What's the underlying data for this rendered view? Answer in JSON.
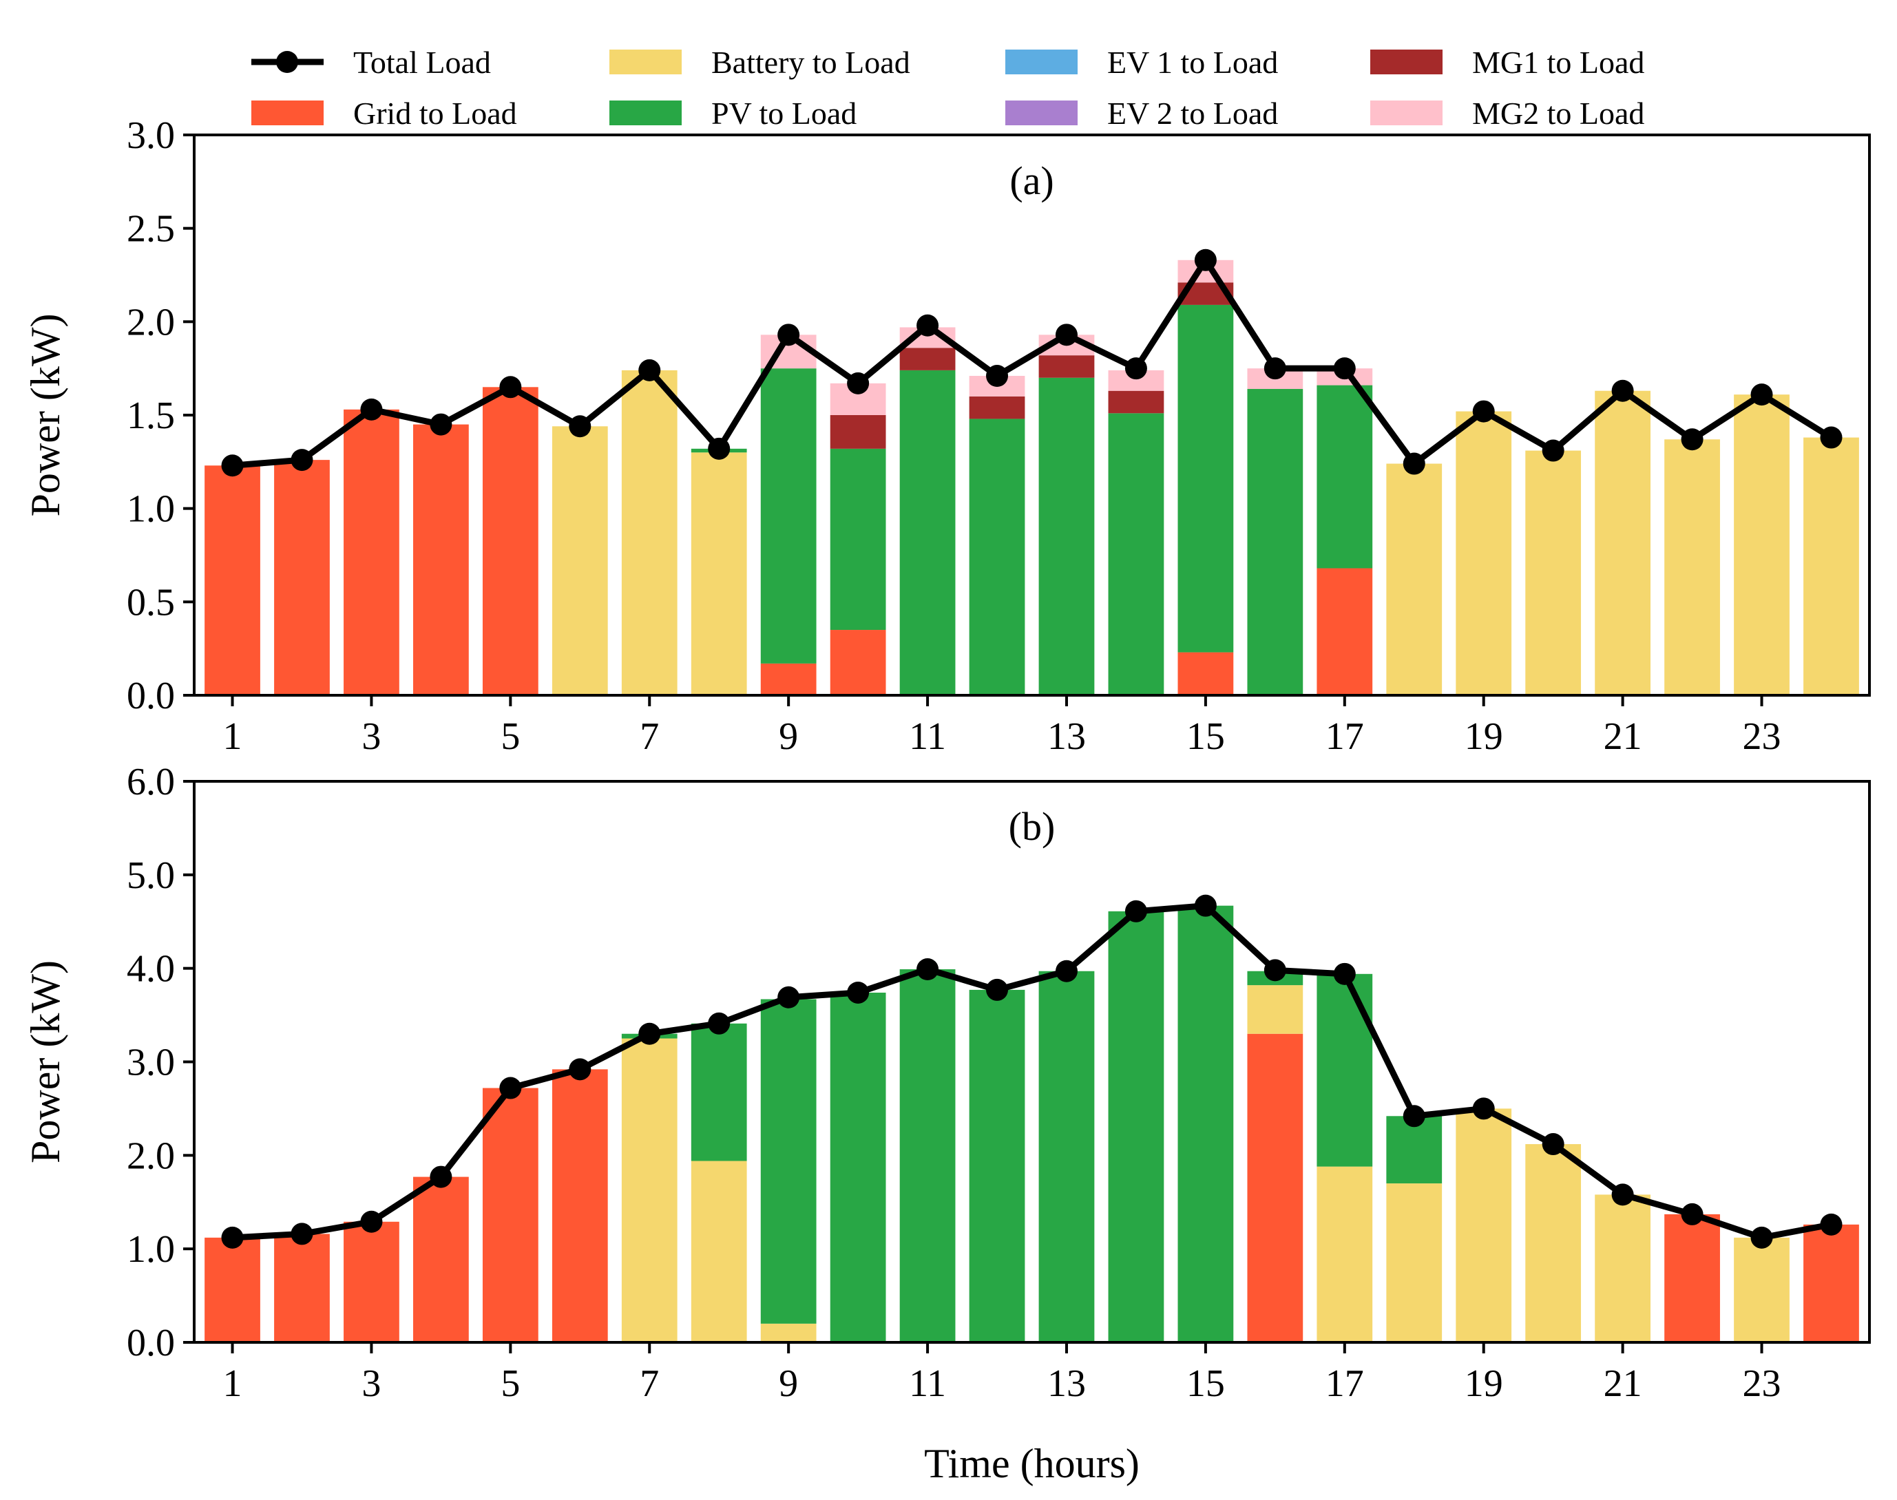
{
  "chart_data": [
    {
      "type": "bar",
      "subtype": "stacked",
      "panel_label": "(a)",
      "ylabel": "Power (kW)",
      "xlabel": "",
      "ylim": [
        0,
        3.0
      ],
      "yticks": [
        "0.0",
        "0.5",
        "1.0",
        "1.5",
        "2.0",
        "2.5",
        "3.0"
      ],
      "ytick_values": [
        0,
        0.5,
        1.0,
        1.5,
        2.0,
        2.5,
        3.0
      ],
      "x": [
        1,
        2,
        3,
        4,
        5,
        6,
        7,
        8,
        9,
        10,
        11,
        12,
        13,
        14,
        15,
        16,
        17,
        18,
        19,
        20,
        21,
        22,
        23,
        24
      ],
      "xticks": [
        "1",
        "3",
        "5",
        "7",
        "9",
        "11",
        "13",
        "15",
        "17",
        "19",
        "21",
        "23"
      ],
      "xtick_values": [
        1,
        3,
        5,
        7,
        9,
        11,
        13,
        15,
        17,
        19,
        21,
        23
      ],
      "series": [
        {
          "name": "Grid to Load",
          "color": "#ff5733",
          "values": [
            1.23,
            1.26,
            1.53,
            1.45,
            1.65,
            0,
            0,
            0,
            0.17,
            0.35,
            0,
            0,
            0,
            0,
            0.23,
            0,
            0.68,
            0,
            0,
            0,
            0,
            0,
            0,
            0
          ]
        },
        {
          "name": "Battery to Load",
          "color": "#f5d76e",
          "values": [
            0,
            0,
            0,
            0,
            0,
            1.44,
            1.74,
            1.3,
            0,
            0,
            0,
            0,
            0,
            0,
            0,
            0,
            0,
            1.24,
            1.52,
            1.31,
            1.63,
            1.37,
            1.61,
            1.38
          ]
        },
        {
          "name": "PV to Load",
          "color": "#28a745",
          "values": [
            0,
            0,
            0,
            0,
            0,
            0,
            0,
            0.02,
            1.58,
            0.97,
            1.74,
            1.48,
            1.7,
            1.51,
            1.86,
            1.64,
            0.98,
            0,
            0,
            0,
            0,
            0,
            0,
            0
          ]
        },
        {
          "name": "EV 1 to Load",
          "color": "#5dade2",
          "values": [
            0,
            0,
            0,
            0,
            0,
            0,
            0,
            0,
            0,
            0,
            0,
            0,
            0,
            0,
            0,
            0,
            0,
            0,
            0,
            0,
            0,
            0,
            0,
            0
          ]
        },
        {
          "name": "EV 2 to Load",
          "color": "#a97fcf",
          "values": [
            0,
            0,
            0,
            0,
            0,
            0,
            0,
            0,
            0,
            0,
            0,
            0,
            0,
            0,
            0,
            0,
            0,
            0,
            0,
            0,
            0,
            0,
            0,
            0
          ]
        },
        {
          "name": "MG1 to Load",
          "color": "#a52a2a",
          "values": [
            0,
            0,
            0,
            0,
            0,
            0,
            0,
            0,
            0,
            0.18,
            0.12,
            0.12,
            0.12,
            0.12,
            0.12,
            0,
            0,
            0,
            0,
            0,
            0,
            0,
            0,
            0
          ]
        },
        {
          "name": "MG2 to Load",
          "color": "#ffc0cb",
          "values": [
            0,
            0,
            0,
            0,
            0,
            0,
            0,
            0,
            0.18,
            0.17,
            0.11,
            0.11,
            0.11,
            0.11,
            0.12,
            0.11,
            0.09,
            0,
            0,
            0,
            0,
            0,
            0,
            0
          ]
        }
      ],
      "line": {
        "name": "Total Load",
        "color": "#000000",
        "values": [
          1.23,
          1.26,
          1.53,
          1.45,
          1.65,
          1.44,
          1.74,
          1.32,
          1.93,
          1.67,
          1.98,
          1.71,
          1.93,
          1.75,
          2.33,
          1.75,
          1.75,
          1.24,
          1.52,
          1.31,
          1.63,
          1.37,
          1.61,
          1.38
        ]
      }
    },
    {
      "type": "bar",
      "subtype": "stacked",
      "panel_label": "(b)",
      "ylabel": "Power (kW)",
      "xlabel": "Time (hours)",
      "ylim": [
        0,
        6.0
      ],
      "yticks": [
        "0.0",
        "1.0",
        "2.0",
        "3.0",
        "4.0",
        "5.0",
        "6.0"
      ],
      "ytick_values": [
        0,
        1.0,
        2.0,
        3.0,
        4.0,
        5.0,
        6.0
      ],
      "x": [
        1,
        2,
        3,
        4,
        5,
        6,
        7,
        8,
        9,
        10,
        11,
        12,
        13,
        14,
        15,
        16,
        17,
        18,
        19,
        20,
        21,
        22,
        23,
        24
      ],
      "xticks": [
        "1",
        "3",
        "5",
        "7",
        "9",
        "11",
        "13",
        "15",
        "17",
        "19",
        "21",
        "23"
      ],
      "xtick_values": [
        1,
        3,
        5,
        7,
        9,
        11,
        13,
        15,
        17,
        19,
        21,
        23
      ],
      "series": [
        {
          "name": "Grid to Load",
          "color": "#ff5733",
          "values": [
            1.12,
            1.16,
            1.29,
            1.77,
            2.72,
            2.92,
            0,
            0,
            0,
            0,
            0,
            0,
            0,
            0,
            0,
            3.3,
            0,
            0,
            0,
            0,
            0,
            1.37,
            0,
            1.26
          ]
        },
        {
          "name": "Battery to Load",
          "color": "#f5d76e",
          "values": [
            0,
            0,
            0,
            0,
            0,
            0,
            3.25,
            1.94,
            0.2,
            0,
            0,
            0,
            0,
            0,
            0,
            0.52,
            1.88,
            1.7,
            2.5,
            2.12,
            1.58,
            0,
            1.12,
            0
          ]
        },
        {
          "name": "PV to Load",
          "color": "#28a745",
          "values": [
            0,
            0,
            0,
            0,
            0,
            0,
            0.05,
            1.47,
            3.47,
            3.74,
            3.99,
            3.77,
            3.97,
            4.61,
            4.67,
            0.15,
            2.06,
            0.72,
            0,
            0,
            0,
            0,
            0,
            0
          ]
        },
        {
          "name": "EV 1 to Load",
          "color": "#5dade2",
          "values": [
            0,
            0,
            0,
            0,
            0,
            0,
            0,
            0,
            0,
            0,
            0,
            0,
            0,
            0,
            0,
            0,
            0,
            0,
            0,
            0,
            0,
            0,
            0,
            0
          ]
        },
        {
          "name": "EV 2 to Load",
          "color": "#a97fcf",
          "values": [
            0,
            0,
            0,
            0,
            0,
            0,
            0,
            0,
            0,
            0,
            0,
            0,
            0,
            0,
            0,
            0,
            0,
            0,
            0,
            0,
            0,
            0,
            0,
            0
          ]
        },
        {
          "name": "MG1 to Load",
          "color": "#a52a2a",
          "values": [
            0,
            0,
            0,
            0,
            0,
            0,
            0,
            0,
            0,
            0,
            0,
            0,
            0,
            0,
            0,
            0,
            0,
            0,
            0,
            0,
            0,
            0,
            0,
            0
          ]
        },
        {
          "name": "MG2 to Load",
          "color": "#ffc0cb",
          "values": [
            0,
            0,
            0,
            0,
            0,
            0,
            0,
            0,
            0,
            0,
            0,
            0,
            0,
            0,
            0,
            0,
            0,
            0,
            0,
            0,
            0,
            0,
            0,
            0
          ]
        }
      ],
      "line": {
        "name": "Total Load",
        "color": "#000000",
        "values": [
          1.12,
          1.16,
          1.29,
          1.77,
          2.72,
          2.92,
          3.3,
          3.41,
          3.69,
          3.74,
          3.99,
          3.77,
          3.97,
          4.61,
          4.67,
          3.98,
          3.94,
          2.42,
          2.5,
          2.12,
          1.58,
          1.37,
          1.12,
          1.26
        ]
      }
    }
  ],
  "legend": {
    "placement": "top",
    "entries": [
      {
        "label": "Total Load",
        "kind": "line",
        "color": "#000000"
      },
      {
        "label": "Grid to Load",
        "kind": "patch",
        "color": "#ff5733"
      },
      {
        "label": "Battery to Load",
        "kind": "patch",
        "color": "#f5d76e"
      },
      {
        "label": "PV to Load",
        "kind": "patch",
        "color": "#28a745"
      },
      {
        "label": "EV 1 to Load",
        "kind": "patch",
        "color": "#5dade2"
      },
      {
        "label": "EV 2 to Load",
        "kind": "patch",
        "color": "#a97fcf"
      },
      {
        "label": "MG1 to Load",
        "kind": "patch",
        "color": "#a52a2a"
      },
      {
        "label": "MG2 to Load",
        "kind": "patch",
        "color": "#ffc0cb"
      }
    ]
  }
}
